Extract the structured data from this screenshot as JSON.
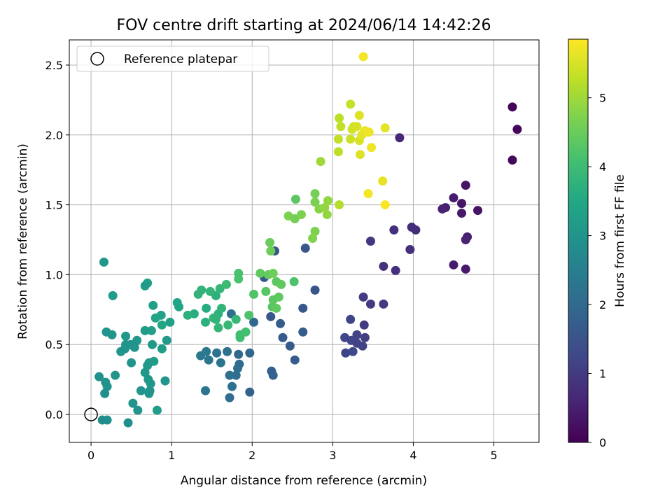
{
  "chart_data": {
    "type": "scatter",
    "title": "FOV centre drift starting at 2024/06/14 14:42:26",
    "xlabel": "Angular distance from reference (arcmin)",
    "ylabel": "Rotation from reference (arcmin)",
    "xlim": [
      -0.27,
      5.56
    ],
    "ylim": [
      -0.2,
      2.68
    ],
    "xticks": [
      0,
      1,
      2,
      3,
      4,
      5
    ],
    "xtick_labels": [
      "0",
      "1",
      "2",
      "3",
      "4",
      "5"
    ],
    "yticks": [
      0.0,
      0.5,
      1.0,
      1.5,
      2.0,
      2.5
    ],
    "ytick_labels": [
      "0.0",
      "0.5",
      "1.0",
      "1.5",
      "2.0",
      "2.5"
    ],
    "grid": true,
    "legend": {
      "position": "top-left",
      "entries": [
        "Reference platepar"
      ]
    },
    "reference_point": {
      "x": 0,
      "y": 0,
      "marker": "open-circle"
    },
    "colorbar": {
      "label": "Hours from first FF file",
      "colormap": "viridis",
      "range": [
        0,
        5.85
      ],
      "ticks": [
        0,
        1,
        2,
        3,
        4,
        5
      ],
      "tick_labels": [
        "0",
        "1",
        "2",
        "3",
        "4",
        "5"
      ]
    },
    "series": [
      {
        "columns": [
          "x",
          "y",
          "hours"
        ],
        "points": [
          [
            5.23,
            2.2,
            0.05
          ],
          [
            5.29,
            2.04,
            0.08
          ],
          [
            5.23,
            1.82,
            0.1
          ],
          [
            4.65,
            1.64,
            0.3
          ],
          [
            4.8,
            1.46,
            0.32
          ],
          [
            4.6,
            1.51,
            0.35
          ],
          [
            4.6,
            1.44,
            0.4
          ],
          [
            4.5,
            1.55,
            0.45
          ],
          [
            4.4,
            1.48,
            0.5
          ],
          [
            4.36,
            1.47,
            0.55
          ],
          [
            4.67,
            1.27,
            0.5
          ],
          [
            4.65,
            1.25,
            0.55
          ],
          [
            4.5,
            1.07,
            0.45
          ],
          [
            4.65,
            1.04,
            0.4
          ],
          [
            3.83,
            1.98,
            0.65
          ],
          [
            3.98,
            1.34,
            0.75
          ],
          [
            4.03,
            1.32,
            0.75
          ],
          [
            3.76,
            1.32,
            0.8
          ],
          [
            3.96,
            1.18,
            0.8
          ],
          [
            3.47,
            1.24,
            0.95
          ],
          [
            3.63,
            1.06,
            0.85
          ],
          [
            3.78,
            1.03,
            0.8
          ],
          [
            3.38,
            0.84,
            1.0
          ],
          [
            3.47,
            0.79,
            1.0
          ],
          [
            3.63,
            0.79,
            0.95
          ],
          [
            3.22,
            0.68,
            1.2
          ],
          [
            3.39,
            0.64,
            1.05
          ],
          [
            3.3,
            0.57,
            1.15
          ],
          [
            3.4,
            0.55,
            1.1
          ],
          [
            3.15,
            0.55,
            1.2
          ],
          [
            3.23,
            0.53,
            1.2
          ],
          [
            3.3,
            0.51,
            1.15
          ],
          [
            3.37,
            0.49,
            1.15
          ],
          [
            3.16,
            0.44,
            1.2
          ],
          [
            3.25,
            0.45,
            1.25
          ],
          [
            2.28,
            1.17,
            1.6
          ],
          [
            2.66,
            1.19,
            1.55
          ],
          [
            2.78,
            0.89,
            1.55
          ],
          [
            2.15,
            0.98,
            1.65
          ],
          [
            2.63,
            0.76,
            1.6
          ],
          [
            2.23,
            0.7,
            1.6
          ],
          [
            2.35,
            0.65,
            1.7
          ],
          [
            2.63,
            0.59,
            1.7
          ],
          [
            2.38,
            0.55,
            1.65
          ],
          [
            2.47,
            0.49,
            1.65
          ],
          [
            2.53,
            0.39,
            1.7
          ],
          [
            2.24,
            0.31,
            1.8
          ],
          [
            2.26,
            0.28,
            1.8
          ],
          [
            2.02,
            0.66,
            2.0
          ],
          [
            1.97,
            0.44,
            1.95
          ],
          [
            1.97,
            0.16,
            1.85
          ],
          [
            1.74,
            0.72,
            2.1
          ],
          [
            1.83,
            0.43,
            2.0
          ],
          [
            1.84,
            0.36,
            2.05
          ],
          [
            1.82,
            0.33,
            2.1
          ],
          [
            1.8,
            0.28,
            2.1
          ],
          [
            1.72,
            0.28,
            2.15
          ],
          [
            1.75,
            0.2,
            2.2
          ],
          [
            1.72,
            0.12,
            2.1
          ],
          [
            1.69,
            0.45,
            2.2
          ],
          [
            1.56,
            0.44,
            2.2
          ],
          [
            1.61,
            0.37,
            2.25
          ],
          [
            1.46,
            0.39,
            2.3
          ],
          [
            1.43,
            0.45,
            2.35
          ],
          [
            1.36,
            0.42,
            2.35
          ],
          [
            1.42,
            0.17,
            2.3
          ],
          [
            1.55,
            0.85,
            3.7
          ],
          [
            1.43,
            0.76,
            3.6
          ],
          [
            1.58,
            0.72,
            3.75
          ],
          [
            1.42,
            0.66,
            3.7
          ],
          [
            1.37,
            0.89,
            3.8
          ],
          [
            1.33,
            0.86,
            3.8
          ],
          [
            1.48,
            0.88,
            3.85
          ],
          [
            1.28,
            0.72,
            3.65
          ],
          [
            1.2,
            0.71,
            3.7
          ],
          [
            1.07,
            0.8,
            3.4
          ],
          [
            1.09,
            0.77,
            3.4
          ],
          [
            0.98,
            0.66,
            3.3
          ],
          [
            0.87,
            0.71,
            3.35
          ],
          [
            0.8,
            0.69,
            3.4
          ],
          [
            0.88,
            0.64,
            3.45
          ],
          [
            0.77,
            0.78,
            3.3
          ],
          [
            0.7,
            0.94,
            3.3
          ],
          [
            0.67,
            0.92,
            3.2
          ],
          [
            0.27,
            0.85,
            3.2
          ],
          [
            0.16,
            1.09,
            3.1
          ],
          [
            0.75,
            0.6,
            3.3
          ],
          [
            0.67,
            0.6,
            3.2
          ],
          [
            0.76,
            0.5,
            3.15
          ],
          [
            0.94,
            0.53,
            3.15
          ],
          [
            0.88,
            0.47,
            3.2
          ],
          [
            0.78,
            0.38,
            3.2
          ],
          [
            0.72,
            0.37,
            3.15
          ],
          [
            0.7,
            0.35,
            3.1
          ],
          [
            0.67,
            0.3,
            3.1
          ],
          [
            0.71,
            0.25,
            3.05
          ],
          [
            0.74,
            0.22,
            3.05
          ],
          [
            0.73,
            0.17,
            3.0
          ],
          [
            0.72,
            0.15,
            3.0
          ],
          [
            0.62,
            0.17,
            3.0
          ],
          [
            0.92,
            0.24,
            3.0
          ],
          [
            0.82,
            0.03,
            3.2
          ],
          [
            0.57,
            0.53,
            3.05
          ],
          [
            0.49,
            0.5,
            3.0
          ],
          [
            0.54,
            0.48,
            3.0
          ],
          [
            0.43,
            0.56,
            3.05
          ],
          [
            0.43,
            0.5,
            3.0
          ],
          [
            0.37,
            0.45,
            3.05
          ],
          [
            0.42,
            0.47,
            3.0
          ],
          [
            0.26,
            0.57,
            3.0
          ],
          [
            0.19,
            0.59,
            3.0
          ],
          [
            0.5,
            0.37,
            3.0
          ],
          [
            0.3,
            0.28,
            3.0
          ],
          [
            0.1,
            0.27,
            2.95
          ],
          [
            0.18,
            0.23,
            2.95
          ],
          [
            0.2,
            0.2,
            2.95
          ],
          [
            0.17,
            0.15,
            2.9
          ],
          [
            0.52,
            0.08,
            3.0
          ],
          [
            0.58,
            0.03,
            3.0
          ],
          [
            0.2,
            -0.04,
            2.9
          ],
          [
            0.14,
            -0.04,
            2.85
          ],
          [
            0.46,
            -0.06,
            2.9
          ],
          [
            1.6,
            0.9,
            3.85
          ],
          [
            1.62,
            0.76,
            3.8
          ],
          [
            1.68,
            0.93,
            4.0
          ],
          [
            1.8,
            0.68,
            3.9
          ],
          [
            1.7,
            0.64,
            3.9
          ],
          [
            1.58,
            0.62,
            3.85
          ],
          [
            1.52,
            0.69,
            3.85
          ],
          [
            1.55,
            0.68,
            3.8
          ],
          [
            1.85,
            0.57,
            4.05
          ],
          [
            1.85,
            0.55,
            4.05
          ],
          [
            1.92,
            0.59,
            4.1
          ],
          [
            1.96,
            0.71,
            4.2
          ],
          [
            1.83,
            1.01,
            4.15
          ],
          [
            1.83,
            0.97,
            4.15
          ],
          [
            2.02,
            0.86,
            4.25
          ],
          [
            2.17,
            0.88,
            4.3
          ],
          [
            2.25,
            0.77,
            4.3
          ],
          [
            2.33,
            0.84,
            4.4
          ],
          [
            2.3,
            0.95,
            4.35
          ],
          [
            2.36,
            0.93,
            4.4
          ],
          [
            2.52,
            0.95,
            4.2
          ],
          [
            2.26,
            0.82,
            4.35
          ],
          [
            2.3,
            0.76,
            4.4
          ],
          [
            2.1,
            1.01,
            4.4
          ],
          [
            2.2,
            1.0,
            4.45
          ],
          [
            2.26,
            1.01,
            4.55
          ],
          [
            2.22,
            1.23,
            4.5
          ],
          [
            2.23,
            1.17,
            4.55
          ],
          [
            2.54,
            1.54,
            4.35
          ],
          [
            2.53,
            1.4,
            4.6
          ],
          [
            2.61,
            1.43,
            4.7
          ],
          [
            2.45,
            1.42,
            4.7
          ],
          [
            2.78,
            1.31,
            4.7
          ],
          [
            2.75,
            1.26,
            4.75
          ],
          [
            2.78,
            1.58,
            4.6
          ],
          [
            2.78,
            1.52,
            4.65
          ],
          [
            2.83,
            1.47,
            4.8
          ],
          [
            2.9,
            1.48,
            4.9
          ],
          [
            2.93,
            1.43,
            4.9
          ],
          [
            2.94,
            1.53,
            4.9
          ],
          [
            2.85,
            1.81,
            5.0
          ],
          [
            3.08,
            1.5,
            5.2
          ],
          [
            3.07,
            1.88,
            5.25
          ],
          [
            3.07,
            1.97,
            5.3
          ],
          [
            3.08,
            2.12,
            5.25
          ],
          [
            3.1,
            2.06,
            5.3
          ],
          [
            3.22,
            2.22,
            5.35
          ],
          [
            3.22,
            1.97,
            5.4
          ],
          [
            3.24,
            2.04,
            5.45
          ],
          [
            3.26,
            2.06,
            5.45
          ],
          [
            3.3,
            2.06,
            5.5
          ],
          [
            3.33,
            1.96,
            5.5
          ],
          [
            3.33,
            2.14,
            5.55
          ],
          [
            3.34,
            1.86,
            5.55
          ],
          [
            3.36,
            2.0,
            5.6
          ],
          [
            3.4,
            2.03,
            5.65
          ],
          [
            3.45,
            2.02,
            5.65
          ],
          [
            3.43,
            2.02,
            5.7
          ],
          [
            3.48,
            1.91,
            5.7
          ],
          [
            3.65,
            2.05,
            5.6
          ],
          [
            3.38,
            2.56,
            5.75
          ],
          [
            3.62,
            1.67,
            5.65
          ],
          [
            3.44,
            1.58,
            5.75
          ],
          [
            3.65,
            1.5,
            5.8
          ]
        ]
      }
    ]
  }
}
